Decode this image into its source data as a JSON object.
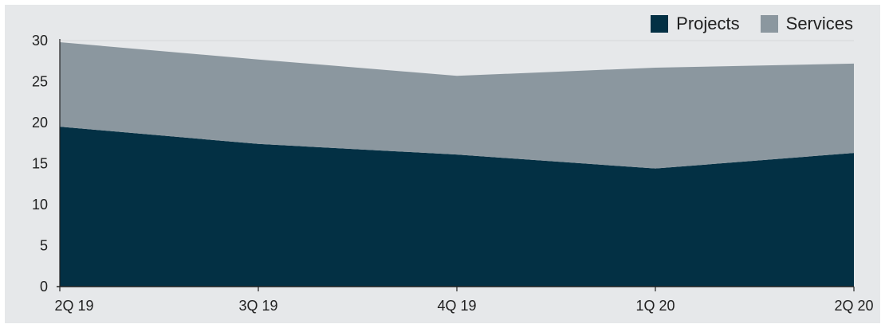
{
  "chart_data": {
    "type": "area",
    "stacked": true,
    "categories": [
      "2Q 19",
      "3Q 19",
      "4Q 19",
      "1Q 20",
      "2Q 20"
    ],
    "series": [
      {
        "name": "Projects",
        "values": [
          19.5,
          17.4,
          16.1,
          14.4,
          16.3
        ],
        "color": "#033044"
      },
      {
        "name": "Services",
        "values": [
          10.3,
          10.3,
          9.6,
          12.3,
          10.9
        ],
        "color": "#8b979f"
      }
    ],
    "ylim": [
      0,
      30
    ],
    "yticks": [
      0,
      5,
      10,
      15,
      20,
      25,
      30
    ],
    "grid": "horizontal",
    "legend_position": "top-right",
    "background_color": "#e6e8ea",
    "axis_color": "#222222",
    "gridline_color": "#d6d8da",
    "title": "",
    "xlabel": "",
    "ylabel": ""
  }
}
